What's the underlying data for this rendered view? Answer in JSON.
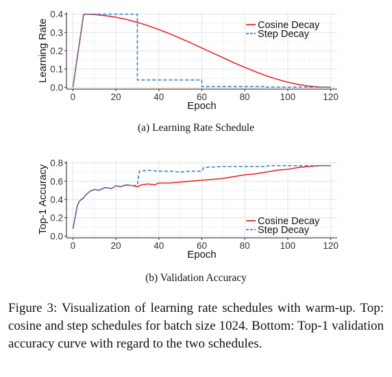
{
  "chart_data": [
    {
      "type": "line",
      "caption": "(a) Learning Rate Schedule",
      "xlabel": "Epoch",
      "ylabel": "Learning Rate",
      "xlim": [
        -3,
        123
      ],
      "ylim": [
        -0.01,
        0.41
      ],
      "xticks": [
        0,
        20,
        40,
        60,
        80,
        100,
        120
      ],
      "xtick_labels": [
        "0",
        "20",
        "40",
        "60",
        "80",
        "100",
        "120"
      ],
      "yticks": [
        0.0,
        0.1,
        0.2,
        0.3,
        0.4
      ],
      "ytick_labels": [
        "0.0",
        "0.1",
        "0.2",
        "0.3",
        "0.4"
      ],
      "grid": true,
      "legend_position": "top-right",
      "series": [
        {
          "name": "Cosine Decay",
          "color": "#e8262d",
          "dash": "solid",
          "x": [
            0,
            5,
            10,
            15,
            20,
            25,
            30,
            35,
            40,
            45,
            50,
            55,
            60,
            65,
            70,
            75,
            80,
            85,
            90,
            95,
            100,
            105,
            110,
            115,
            120
          ],
          "y": [
            0.0,
            0.4,
            0.398,
            0.392,
            0.383,
            0.371,
            0.355,
            0.337,
            0.316,
            0.293,
            0.268,
            0.242,
            0.215,
            0.188,
            0.161,
            0.134,
            0.109,
            0.085,
            0.063,
            0.044,
            0.028,
            0.015,
            0.006,
            0.001,
            0.0
          ]
        },
        {
          "name": "Step Decay",
          "color": "#3b7fc4",
          "dash": "dashed",
          "x": [
            0,
            5,
            30,
            30,
            60,
            60,
            90,
            90,
            120
          ],
          "y": [
            0.0,
            0.4,
            0.4,
            0.04,
            0.04,
            0.004,
            0.004,
            0.0004,
            0.0004
          ]
        }
      ]
    },
    {
      "type": "line",
      "caption": "(b) Validation Accuracy",
      "xlabel": "Epoch",
      "ylabel": "Top-1 Accuracy",
      "xlim": [
        -3,
        123
      ],
      "ylim": [
        -0.02,
        0.82
      ],
      "xticks": [
        0,
        20,
        40,
        60,
        80,
        100,
        120
      ],
      "xtick_labels": [
        "0",
        "20",
        "40",
        "60",
        "80",
        "100",
        "120"
      ],
      "yticks": [
        0.0,
        0.2,
        0.4,
        0.6,
        0.8
      ],
      "ytick_labels": [
        "0.0",
        "0.2",
        "0.4",
        "0.6",
        "0.8"
      ],
      "grid": true,
      "legend_position": "bottom-right",
      "series": [
        {
          "name": "Cosine Decay",
          "color": "#e8262d",
          "dash": "solid",
          "x": [
            0,
            1,
            2,
            3,
            4,
            5,
            6,
            8,
            10,
            12,
            15,
            18,
            20,
            22,
            25,
            28,
            30,
            32,
            35,
            38,
            40,
            45,
            50,
            55,
            60,
            65,
            70,
            75,
            80,
            85,
            90,
            95,
            100,
            105,
            110,
            115,
            120
          ],
          "y": [
            0.08,
            0.2,
            0.33,
            0.38,
            0.4,
            0.42,
            0.45,
            0.49,
            0.51,
            0.5,
            0.53,
            0.52,
            0.55,
            0.54,
            0.56,
            0.55,
            0.54,
            0.56,
            0.57,
            0.56,
            0.58,
            0.58,
            0.59,
            0.6,
            0.61,
            0.62,
            0.63,
            0.65,
            0.67,
            0.68,
            0.7,
            0.72,
            0.73,
            0.75,
            0.76,
            0.77,
            0.77
          ]
        },
        {
          "name": "Step Decay",
          "color": "#3b7fc4",
          "dash": "dashed",
          "x": [
            0,
            1,
            2,
            3,
            4,
            5,
            6,
            8,
            10,
            12,
            15,
            18,
            20,
            22,
            25,
            28,
            30,
            31,
            35,
            40,
            45,
            50,
            55,
            59,
            60,
            61,
            70,
            80,
            90,
            91,
            100,
            110,
            120
          ],
          "y": [
            0.08,
            0.2,
            0.33,
            0.38,
            0.4,
            0.42,
            0.45,
            0.49,
            0.51,
            0.5,
            0.53,
            0.52,
            0.55,
            0.54,
            0.56,
            0.55,
            0.56,
            0.71,
            0.72,
            0.71,
            0.71,
            0.7,
            0.71,
            0.71,
            0.71,
            0.75,
            0.76,
            0.76,
            0.76,
            0.77,
            0.77,
            0.77,
            0.77
          ]
        }
      ]
    }
  ],
  "figure_caption": "Figure 3:  Visualization of learning rate schedules with warm-up.  Top: cosine and step schedules for batch size 1024. Bottom: Top-1 validation accuracy curve with regard to the two schedules."
}
